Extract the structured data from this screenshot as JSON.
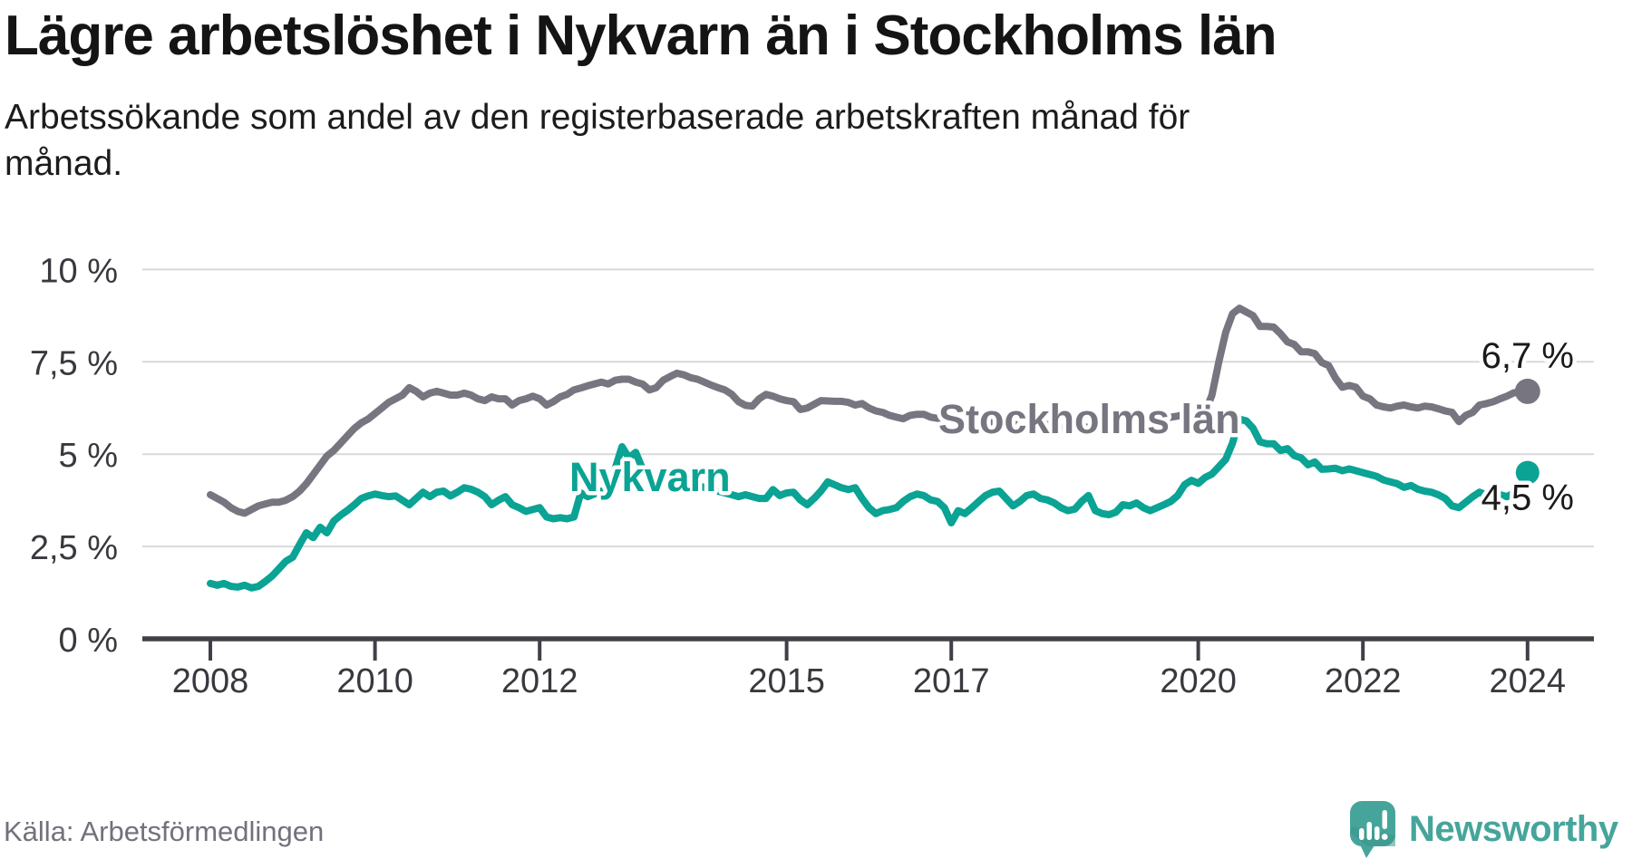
{
  "header": {
    "title": "Lägre arbetslöshet i Nykvarn än i Stockholms län",
    "subtitle_line1": "Arbetssökande som andel av den registerbaserade arbetskraften månad för",
    "subtitle_line2": "månad."
  },
  "footer": {
    "source": "Källa: Arbetsförmedlingen",
    "brand": "Newsworthy",
    "logo_icon": "speech-bubble-bar-chart-icon"
  },
  "colors": {
    "stockholm_line": "#77757f",
    "nykvarn_line": "#0aa394",
    "grid": "#d8d8d8",
    "axis": "#424046",
    "axis_text": "#3a383e",
    "end_label_text": "#1a1a1a",
    "brand_teal": "#46a59b",
    "source_text": "#73717b"
  },
  "chart_data": {
    "type": "line",
    "title": "Lägre arbetslöshet i Nykvarn än i Stockholms län",
    "subtitle": "Arbetssökande som andel av den registerbaserade arbetskraften månad för månad.",
    "source": "Källa: Arbetsförmedlingen",
    "x_unit": "month",
    "x_start": "2008-01",
    "x_end": "2024-01",
    "ylim": [
      0,
      10.3
    ],
    "grid": true,
    "y_ticks": [
      {
        "value": 0,
        "label": "0 %"
      },
      {
        "value": 2.5,
        "label": "2,5 %"
      },
      {
        "value": 5,
        "label": "5 %"
      },
      {
        "value": 7.5,
        "label": "7,5 %"
      },
      {
        "value": 10,
        "label": "10 %"
      }
    ],
    "x_ticks": [
      {
        "year": 2008,
        "label": "2008"
      },
      {
        "year": 2010,
        "label": "2010"
      },
      {
        "year": 2012,
        "label": "2012"
      },
      {
        "year": 2015,
        "label": "2015"
      },
      {
        "year": 2017,
        "label": "2017"
      },
      {
        "year": 2020,
        "label": "2020"
      },
      {
        "year": 2022,
        "label": "2022"
      },
      {
        "year": 2024,
        "label": "2024"
      }
    ],
    "series": [
      {
        "name": "Stockholms län",
        "color": "#77757f",
        "end_value": 6.7,
        "end_label": "6,7 %",
        "values": [
          3.9,
          3.8,
          3.7,
          3.55,
          3.45,
          3.4,
          3.5,
          3.6,
          3.65,
          3.7,
          3.7,
          3.75,
          3.85,
          4.0,
          4.2,
          4.45,
          4.7,
          4.95,
          5.1,
          5.3,
          5.5,
          5.7,
          5.85,
          5.95,
          6.1,
          6.25,
          6.4,
          6.5,
          6.6,
          6.8,
          6.7,
          6.55,
          6.65,
          6.7,
          6.65,
          6.6,
          6.6,
          6.65,
          6.6,
          6.5,
          6.45,
          6.55,
          6.5,
          6.5,
          6.33,
          6.45,
          6.5,
          6.57,
          6.5,
          6.33,
          6.42,
          6.55,
          6.62,
          6.74,
          6.79,
          6.85,
          6.9,
          6.95,
          6.9,
          7.0,
          7.03,
          7.03,
          6.95,
          6.9,
          6.74,
          6.8,
          7.0,
          7.1,
          7.19,
          7.15,
          7.07,
          7.03,
          6.95,
          6.87,
          6.8,
          6.74,
          6.62,
          6.42,
          6.32,
          6.3,
          6.5,
          6.62,
          6.57,
          6.5,
          6.45,
          6.42,
          6.21,
          6.25,
          6.35,
          6.45,
          6.44,
          6.43,
          6.43,
          6.4,
          6.33,
          6.37,
          6.25,
          6.17,
          6.13,
          6.05,
          6.0,
          5.96,
          6.05,
          6.08,
          6.08,
          6.0,
          5.97,
          5.93,
          5.9,
          5.87,
          5.85,
          5.83,
          5.8,
          5.83,
          5.87,
          5.84,
          5.8,
          5.78,
          5.82,
          5.86,
          5.88,
          5.85,
          5.8,
          5.76,
          5.72,
          5.75,
          5.8,
          5.76,
          5.72,
          5.75,
          5.8,
          5.84,
          5.88,
          5.85,
          5.82,
          5.86,
          5.9,
          5.94,
          5.98,
          5.95,
          6.0,
          6.03,
          6.07,
          6.1,
          6.1,
          6.13,
          6.6,
          7.5,
          8.3,
          8.8,
          8.95,
          8.85,
          8.75,
          8.46,
          8.46,
          8.44,
          8.26,
          8.04,
          7.97,
          7.77,
          7.77,
          7.72,
          7.48,
          7.4,
          7.06,
          6.81,
          6.86,
          6.81,
          6.57,
          6.5,
          6.33,
          6.28,
          6.25,
          6.3,
          6.33,
          6.28,
          6.25,
          6.3,
          6.28,
          6.23,
          6.17,
          6.13,
          5.88,
          6.05,
          6.13,
          6.33,
          6.37,
          6.42,
          6.5,
          6.57,
          6.66,
          6.68,
          6.7
        ]
      },
      {
        "name": "Nykvarn",
        "color": "#0aa394",
        "end_value": 4.5,
        "end_label": "4,5 %",
        "values": [
          1.5,
          1.45,
          1.5,
          1.42,
          1.4,
          1.45,
          1.38,
          1.42,
          1.55,
          1.7,
          1.9,
          2.1,
          2.21,
          2.55,
          2.87,
          2.74,
          3.02,
          2.87,
          3.19,
          3.35,
          3.48,
          3.63,
          3.8,
          3.87,
          3.92,
          3.88,
          3.85,
          3.87,
          3.75,
          3.63,
          3.8,
          3.97,
          3.85,
          3.97,
          4.0,
          3.87,
          3.97,
          4.09,
          4.05,
          3.97,
          3.85,
          3.63,
          3.75,
          3.85,
          3.63,
          3.55,
          3.45,
          3.5,
          3.55,
          3.3,
          3.25,
          3.28,
          3.25,
          3.3,
          3.95,
          3.85,
          3.92,
          4.0,
          3.95,
          4.6,
          5.2,
          4.9,
          5.05,
          4.6,
          4.3,
          4.2,
          4.25,
          4.2,
          4.15,
          4.2,
          4.1,
          4.15,
          4.1,
          4.05,
          4.0,
          3.95,
          3.9,
          3.85,
          3.9,
          3.85,
          3.8,
          3.8,
          4.04,
          3.88,
          3.95,
          3.97,
          3.76,
          3.63,
          3.8,
          4.0,
          4.25,
          4.17,
          4.09,
          4.04,
          4.09,
          3.8,
          3.55,
          3.39,
          3.47,
          3.5,
          3.55,
          3.72,
          3.85,
          3.92,
          3.88,
          3.76,
          3.72,
          3.55,
          3.14,
          3.47,
          3.39,
          3.55,
          3.72,
          3.88,
          3.97,
          4.0,
          3.8,
          3.6,
          3.72,
          3.88,
          3.92,
          3.8,
          3.76,
          3.68,
          3.55,
          3.47,
          3.51,
          3.72,
          3.88,
          3.47,
          3.39,
          3.36,
          3.43,
          3.63,
          3.6,
          3.68,
          3.55,
          3.47,
          3.55,
          3.63,
          3.72,
          3.88,
          4.17,
          4.29,
          4.21,
          4.37,
          4.46,
          4.66,
          4.86,
          5.3,
          5.95,
          5.9,
          5.7,
          5.33,
          5.28,
          5.28,
          5.1,
          5.15,
          4.96,
          4.9,
          4.71,
          4.79,
          4.59,
          4.6,
          4.62,
          4.55,
          4.6,
          4.55,
          4.5,
          4.45,
          4.4,
          4.3,
          4.25,
          4.2,
          4.1,
          4.15,
          4.05,
          4.0,
          3.97,
          3.9,
          3.8,
          3.6,
          3.55,
          3.7,
          3.85,
          3.97,
          3.9,
          3.95,
          3.9,
          3.85,
          3.95,
          4.1,
          4.5
        ]
      }
    ]
  }
}
